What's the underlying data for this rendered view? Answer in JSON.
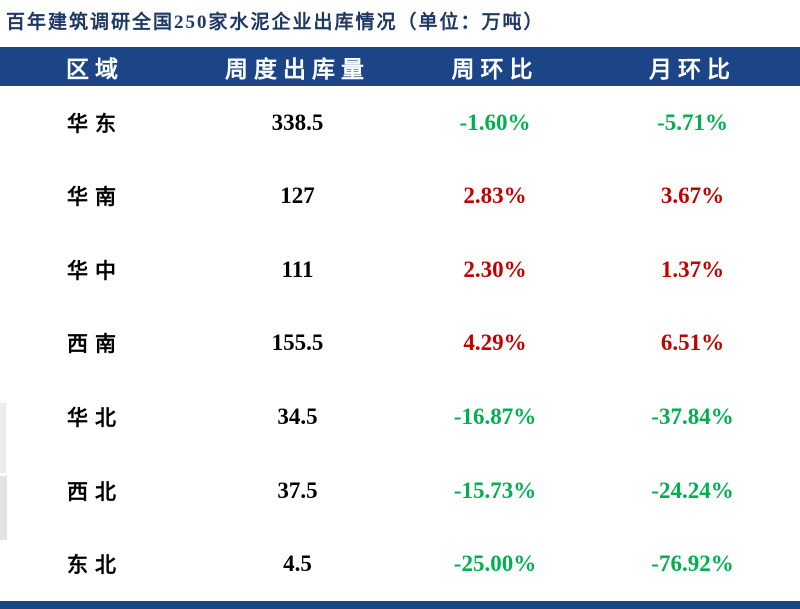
{
  "title": "百年建筑调研全国250家水泥企业出库情况（单位：万吨）",
  "colors": {
    "title_text": "#1F3864",
    "header_bg": "#1C4587",
    "header_text": "#FFFFFF",
    "region_text": "#000000",
    "value_text": "#000000",
    "increase": "#C00000",
    "decrease": "#00B050",
    "bottom_bar": "#1C4587"
  },
  "table": {
    "headers": [
      "区域",
      "周度出库量",
      "周环比",
      "月环比"
    ],
    "rows": [
      {
        "region": "华东",
        "volume": "338.5",
        "wow": "-1.60%",
        "mom": "-5.71%",
        "wow_dir": "down",
        "mom_dir": "down"
      },
      {
        "region": "华南",
        "volume": "127",
        "wow": "2.83%",
        "mom": "3.67%",
        "wow_dir": "up",
        "mom_dir": "up"
      },
      {
        "region": "华中",
        "volume": "111",
        "wow": "2.30%",
        "mom": "1.37%",
        "wow_dir": "up",
        "mom_dir": "up"
      },
      {
        "region": "西南",
        "volume": "155.5",
        "wow": "4.29%",
        "mom": "6.51%",
        "wow_dir": "up",
        "mom_dir": "up"
      },
      {
        "region": "华北",
        "volume": "34.5",
        "wow": "-16.87%",
        "mom": "-37.84%",
        "wow_dir": "down",
        "mom_dir": "down"
      },
      {
        "region": "西北",
        "volume": "37.5",
        "wow": "-15.73%",
        "mom": "-24.24%",
        "wow_dir": "down",
        "mom_dir": "down"
      },
      {
        "region": "东北",
        "volume": "4.5",
        "wow": "-25.00%",
        "mom": "-76.92%",
        "wow_dir": "down",
        "mom_dir": "down"
      }
    ]
  },
  "chart_data": {
    "type": "table",
    "title": "百年建筑调研全国250家水泥企业出库情况（单位：万吨）",
    "columns": [
      "区域",
      "周度出库量",
      "周环比",
      "月环比"
    ],
    "rows": [
      [
        "华东",
        338.5,
        "-1.60%",
        "-5.71%"
      ],
      [
        "华南",
        127,
        "2.83%",
        "3.67%"
      ],
      [
        "华中",
        111,
        "2.30%",
        "1.37%"
      ],
      [
        "西南",
        155.5,
        "4.29%",
        "6.51%"
      ],
      [
        "华北",
        34.5,
        "-16.87%",
        "-37.84%"
      ],
      [
        "西北",
        37.5,
        "-15.73%",
        "-24.24%"
      ],
      [
        "东北",
        4.5,
        "-25.00%",
        "-76.92%"
      ]
    ],
    "notes": "Positive changes shown in red (#C00000), negative changes in green (#00B050). Unit: 10k tons (万吨)."
  }
}
